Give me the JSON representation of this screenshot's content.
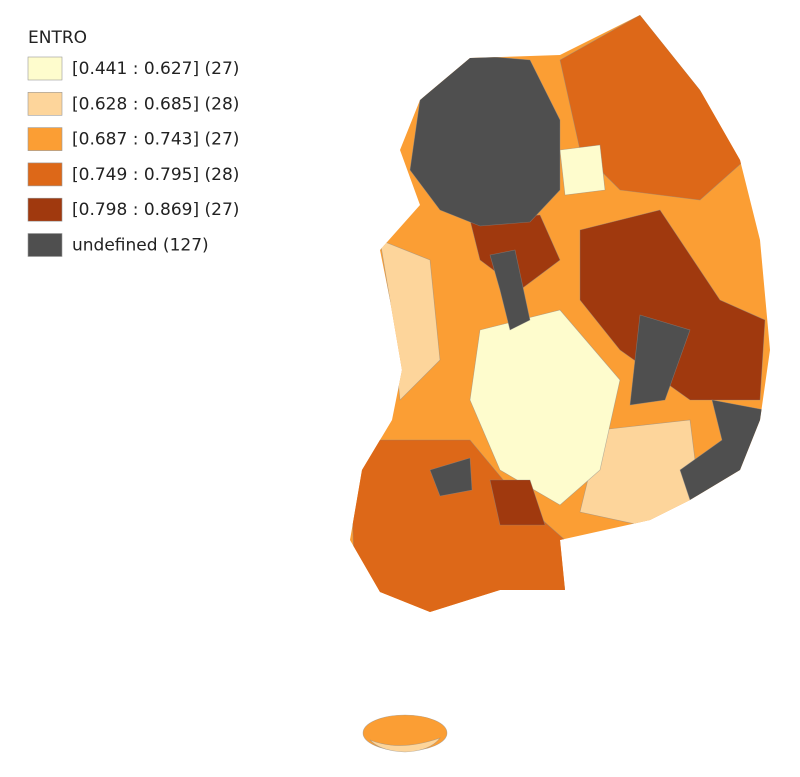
{
  "legend": {
    "title": "ENTRO",
    "items": [
      {
        "label": "[0.441 : 0.627] (27)",
        "color": "#fefccd"
      },
      {
        "label": "[0.628 : 0.685] (28)",
        "color": "#fdd59b"
      },
      {
        "label": "[0.687 : 0.743] (27)",
        "color": "#fb9e34"
      },
      {
        "label": "[0.749 : 0.795] (28)",
        "color": "#dd6818"
      },
      {
        "label": "[0.798 : 0.869] (27)",
        "color": "#a0390e"
      },
      {
        "label": "undefined (127)",
        "color": "#4f4f4f"
      }
    ]
  }
}
